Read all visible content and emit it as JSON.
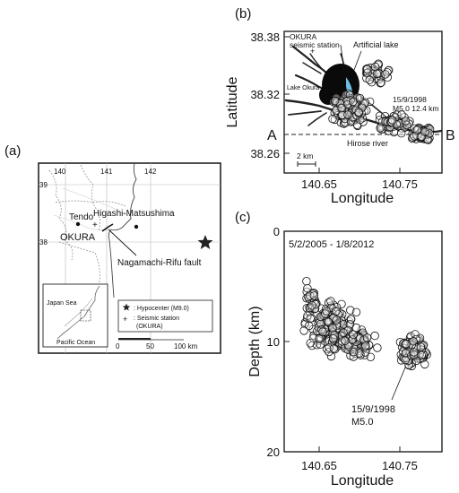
{
  "panel_labels": {
    "a": "(a)",
    "b": "(b)",
    "c": "(c)"
  },
  "map": {
    "lon_ticks": [
      "140",
      "141",
      "142"
    ],
    "lat_ticks": [
      "39",
      "38"
    ],
    "places": {
      "tendo": "Tendo",
      "okura": "OKURA",
      "higashi": "Higashi-Matsushima",
      "fault": "Nagamachi-Rifu fault"
    },
    "inset": {
      "japan_sea": "Japan Sea",
      "pacific": "Pacific Ocean"
    },
    "legend": {
      "hypocenter": ": Hypocenter (M9.0)",
      "station_1": ": Seismic station",
      "station_2": "(OKURA)"
    },
    "scale": {
      "zero": "0",
      "fifty": "50",
      "hundred": "100 km"
    }
  },
  "map_b": {
    "ylabel": "Latitude",
    "xlabel": "Longitude",
    "yticks": [
      "38.38",
      "38.32",
      "38.26"
    ],
    "xticks": [
      "140.65",
      "140.75"
    ],
    "annotations": {
      "station_1": "OKURA",
      "station_2": "seismic station",
      "lake": "Artificial lake",
      "lake_okura": "Lake Okura",
      "event_date": "15/9/1998",
      "event_mag_depth": "M5.0   12.4 km",
      "river": "Hirose river",
      "scale": "2 km",
      "a": "A",
      "b": "B"
    }
  },
  "section_c": {
    "ylabel": "Depth (km)",
    "xlabel": "Longitude",
    "yticks": [
      "0",
      "10",
      "20"
    ],
    "xticks": [
      "140.65",
      "140.75"
    ],
    "period": "5/2/2005 - 1/8/2012",
    "event_date": "15/9/1998",
    "event_mag": "M5.0"
  }
}
